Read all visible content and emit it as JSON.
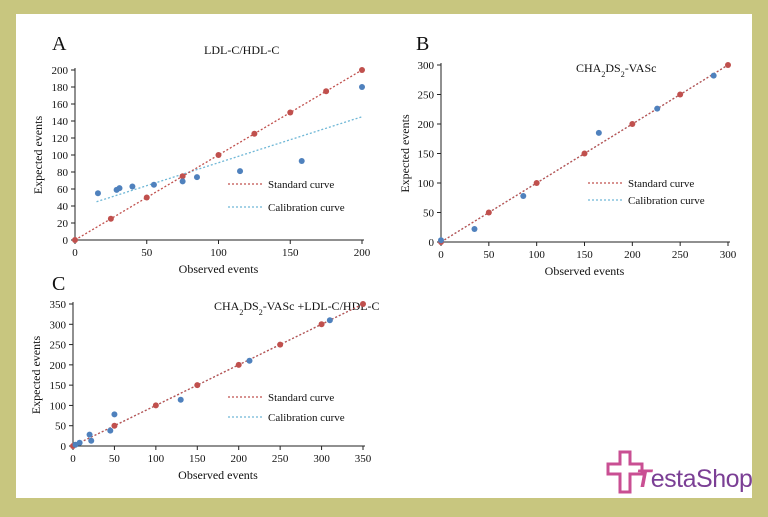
{
  "colors": {
    "frame": "#c8c67f",
    "standard": "#c0504d",
    "calibration": "#4f81bd",
    "calibration_line": "#6fb7d6",
    "brand_pink": "#c94f93",
    "brand_purple": "#7b3f95"
  },
  "chart_data": [
    {
      "panel_letter": "A",
      "type": "scatter",
      "title": "LDL-C/HDL-C",
      "xlabel": "Observed events",
      "ylabel": "Expected events",
      "xlim": [
        0,
        200
      ],
      "ylim": [
        0,
        200
      ],
      "xticks": [
        0,
        50,
        100,
        150,
        200
      ],
      "yticks": [
        0,
        20,
        40,
        60,
        80,
        100,
        120,
        140,
        160,
        180,
        200
      ],
      "legend_position": "middle-right",
      "legend": [
        {
          "label": "Standard curve",
          "series": "standard"
        },
        {
          "label": "Calibration curve",
          "series": "calibration"
        }
      ],
      "series": [
        {
          "key": "standard",
          "color": "#c0504d",
          "line": [
            [
              0,
              0
            ],
            [
              200,
              200
            ]
          ],
          "x": [
            0,
            25,
            50,
            75,
            100,
            125,
            150,
            175,
            200
          ],
          "y": [
            0,
            25,
            50,
            75,
            100,
            125,
            150,
            175,
            200
          ]
        },
        {
          "key": "calibration",
          "color": "#4f81bd",
          "line": [
            [
              15,
              45
            ],
            [
              200,
              145
            ]
          ],
          "x": [
            16,
            29,
            31,
            40,
            55,
            75,
            85,
            115,
            158,
            200
          ],
          "y": [
            55,
            59,
            61,
            63,
            65,
            69,
            74,
            81,
            93,
            180
          ]
        }
      ]
    },
    {
      "panel_letter": "B",
      "type": "scatter",
      "title": "CHA2DS2-VASc",
      "xlabel": "Observed events",
      "ylabel": "Expected events",
      "xlim": [
        0,
        300
      ],
      "ylim": [
        0,
        300
      ],
      "xticks": [
        0,
        50,
        100,
        150,
        200,
        250,
        300
      ],
      "yticks": [
        0,
        50,
        100,
        150,
        200,
        250,
        300
      ],
      "legend_position": "middle-right",
      "legend": [
        {
          "label": "Standard curve",
          "series": "standard"
        },
        {
          "label": "Calibration curve",
          "series": "calibration"
        }
      ],
      "series": [
        {
          "key": "standard",
          "color": "#c0504d",
          "line": [
            [
              0,
              0
            ],
            [
              300,
              300
            ]
          ],
          "x": [
            0,
            50,
            100,
            150,
            200,
            250,
            300
          ],
          "y": [
            0,
            50,
            100,
            150,
            200,
            250,
            300
          ]
        },
        {
          "key": "calibration",
          "color": "#4f81bd",
          "line": [
            [
              0,
              0
            ],
            [
              300,
              300
            ]
          ],
          "x": [
            0,
            35,
            86,
            165,
            226,
            285
          ],
          "y": [
            3,
            22,
            78,
            185,
            226,
            282
          ]
        }
      ]
    },
    {
      "panel_letter": "C",
      "type": "scatter",
      "title": "CHA2DS2-VASc +LDL-C/HDL-C",
      "xlabel": "Observed events",
      "ylabel": "Expected events",
      "xlim": [
        0,
        350
      ],
      "ylim": [
        0,
        350
      ],
      "xticks": [
        0,
        50,
        100,
        150,
        200,
        250,
        300,
        350
      ],
      "yticks": [
        0,
        50,
        100,
        150,
        200,
        250,
        300,
        350
      ],
      "legend_position": "bottom-right",
      "legend": [
        {
          "label": "Standard curve",
          "series": "standard"
        },
        {
          "label": "Calibration curve",
          "series": "calibration"
        }
      ],
      "series": [
        {
          "key": "standard",
          "color": "#c0504d",
          "line": [
            [
              0,
              0
            ],
            [
              350,
              350
            ]
          ],
          "x": [
            0,
            50,
            100,
            150,
            200,
            250,
            300,
            350
          ],
          "y": [
            0,
            50,
            100,
            150,
            200,
            250,
            300,
            350
          ]
        },
        {
          "key": "calibration",
          "color": "#4f81bd",
          "line": [
            [
              0,
              0
            ],
            [
              350,
              350
            ]
          ],
          "x": [
            3,
            8,
            20,
            22,
            45,
            50,
            130,
            213,
            310
          ],
          "y": [
            3,
            8,
            28,
            13,
            38,
            78,
            114,
            210,
            310
          ]
        }
      ]
    }
  ],
  "brand": {
    "part1": "estaShop"
  }
}
